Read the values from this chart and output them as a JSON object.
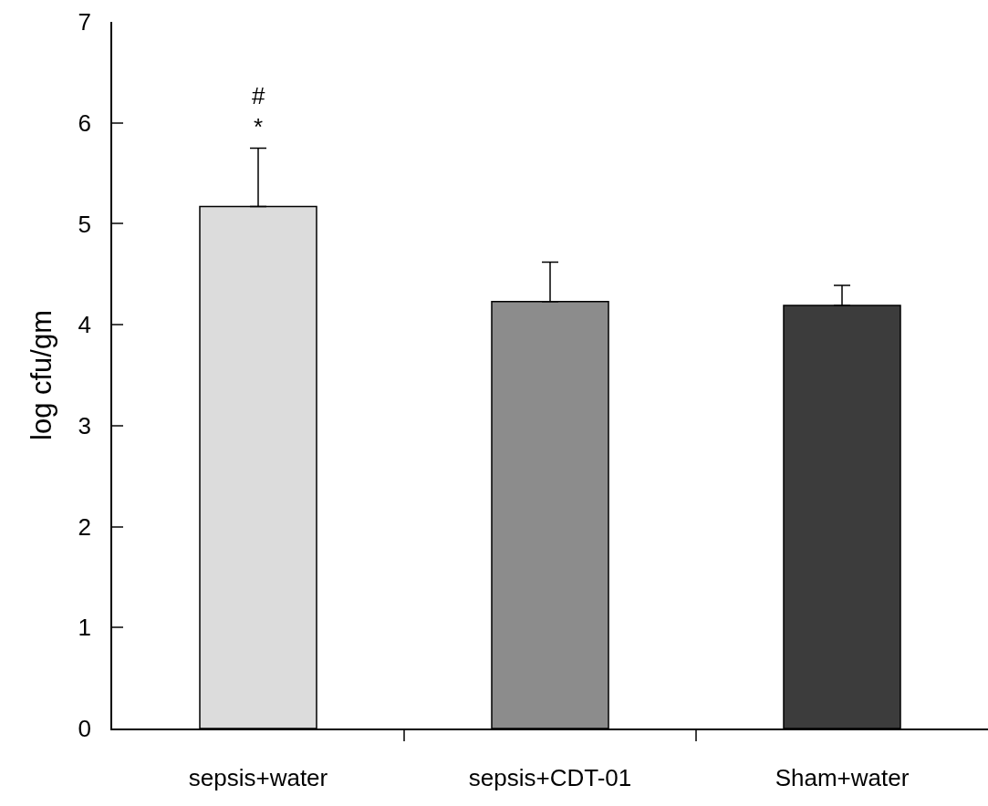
{
  "chart_data": {
    "type": "bar",
    "ylabel": "log cfu/gm",
    "categories": [
      "sepsis+water",
      "sepsis+CDT-01",
      "Sham+water"
    ],
    "values": [
      5.17,
      4.23,
      4.19
    ],
    "errors": [
      [
        5.17,
        5.75
      ],
      [
        4.23,
        4.62
      ],
      [
        4.19,
        4.39
      ]
    ],
    "colors": [
      "#dcdcdc",
      "#8c8c8c",
      "#3c3c3c"
    ],
    "ylim": [
      0,
      7
    ],
    "yticks": [
      0,
      1,
      2,
      3,
      4,
      5,
      6,
      7
    ],
    "annotations": [
      "*",
      "#"
    ]
  }
}
